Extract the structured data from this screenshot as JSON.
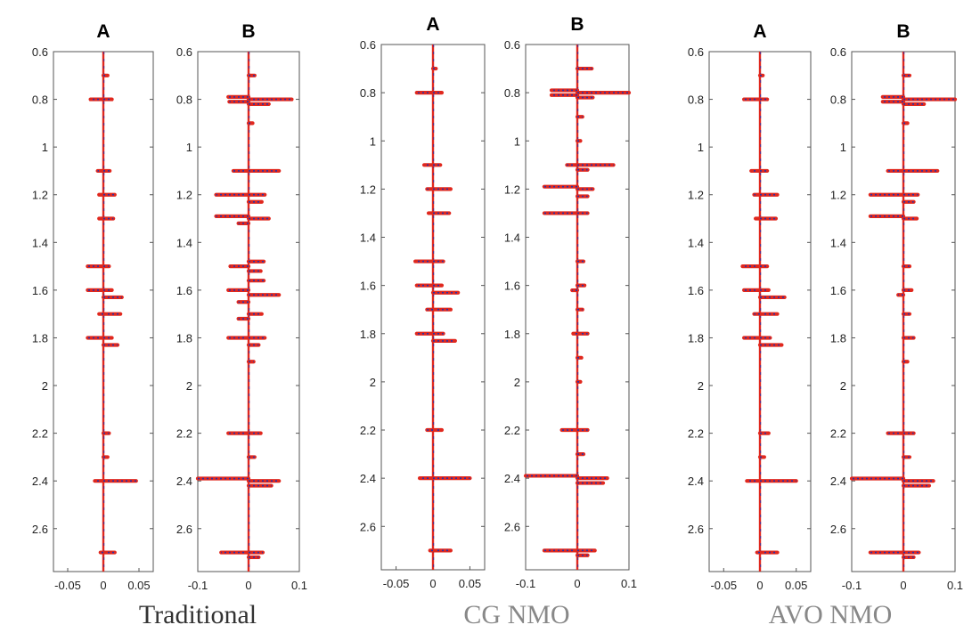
{
  "group_labels": [
    "Traditional",
    "CG NMO",
    "AVO NMO"
  ],
  "colors": {
    "trace_red": "#e0281e",
    "trace_blue": "#2a2fa8",
    "frame": "#555555"
  },
  "chart_data": [
    {
      "type": "line",
      "group": "Traditional",
      "title": "A",
      "xlim": [
        -0.07,
        0.07
      ],
      "xticks": [
        "-0.05",
        "0",
        "0.05"
      ],
      "ylim": [
        2.78,
        0.6
      ],
      "yticks": [
        "0.6",
        "0.8",
        "1",
        "1.2",
        "1.4",
        "1.6",
        "1.8",
        "2",
        "2.2",
        "2.4",
        "2.6"
      ],
      "spikes": [
        {
          "t": 0.7,
          "a": 0.006
        },
        {
          "t": 0.8,
          "a": -0.018
        },
        {
          "t": 0.8,
          "a": 0.012
        },
        {
          "t": 1.1,
          "a": -0.008
        },
        {
          "t": 1.1,
          "a": 0.009
        },
        {
          "t": 1.2,
          "a": -0.006
        },
        {
          "t": 1.2,
          "a": 0.016
        },
        {
          "t": 1.3,
          "a": -0.006
        },
        {
          "t": 1.3,
          "a": 0.014
        },
        {
          "t": 1.5,
          "a": -0.022
        },
        {
          "t": 1.5,
          "a": 0.008
        },
        {
          "t": 1.6,
          "a": -0.022
        },
        {
          "t": 1.6,
          "a": 0.012
        },
        {
          "t": 1.63,
          "a": 0.026
        },
        {
          "t": 1.7,
          "a": 0.024
        },
        {
          "t": 1.7,
          "a": -0.006
        },
        {
          "t": 1.8,
          "a": -0.022
        },
        {
          "t": 1.8,
          "a": 0.012
        },
        {
          "t": 1.83,
          "a": 0.02
        },
        {
          "t": 2.2,
          "a": 0.008
        },
        {
          "t": 2.3,
          "a": 0.006
        },
        {
          "t": 2.4,
          "a": -0.012
        },
        {
          "t": 2.4,
          "a": 0.046
        },
        {
          "t": 2.7,
          "a": 0.016
        },
        {
          "t": 2.7,
          "a": -0.004
        }
      ]
    },
    {
      "type": "line",
      "group": "Traditional",
      "title": "B",
      "xlim": [
        -0.1,
        0.1
      ],
      "xticks": [
        "-0.1",
        "0",
        "0.1"
      ],
      "ylim": [
        2.78,
        0.6
      ],
      "yticks": [
        "0.6",
        "0.8",
        "1",
        "1.2",
        "1.4",
        "1.6",
        "1.8",
        "2",
        "2.2",
        "2.4",
        "2.6"
      ],
      "spikes": [
        {
          "t": 0.7,
          "a": 0.012
        },
        {
          "t": 0.79,
          "a": -0.04
        },
        {
          "t": 0.8,
          "a": 0.085
        },
        {
          "t": 0.81,
          "a": -0.038
        },
        {
          "t": 0.82,
          "a": 0.04
        },
        {
          "t": 0.9,
          "a": 0.008
        },
        {
          "t": 1.1,
          "a": -0.03
        },
        {
          "t": 1.1,
          "a": 0.06
        },
        {
          "t": 1.2,
          "a": -0.064
        },
        {
          "t": 1.2,
          "a": 0.032
        },
        {
          "t": 1.23,
          "a": 0.026
        },
        {
          "t": 1.29,
          "a": -0.064
        },
        {
          "t": 1.3,
          "a": 0.04
        },
        {
          "t": 1.32,
          "a": -0.02
        },
        {
          "t": 1.48,
          "a": 0.03
        },
        {
          "t": 1.5,
          "a": -0.036
        },
        {
          "t": 1.52,
          "a": 0.024
        },
        {
          "t": 1.56,
          "a": 0.03
        },
        {
          "t": 1.6,
          "a": -0.04
        },
        {
          "t": 1.62,
          "a": 0.06
        },
        {
          "t": 1.65,
          "a": -0.02
        },
        {
          "t": 1.7,
          "a": 0.026
        },
        {
          "t": 1.72,
          "a": -0.02
        },
        {
          "t": 1.8,
          "a": -0.04
        },
        {
          "t": 1.8,
          "a": 0.032
        },
        {
          "t": 1.83,
          "a": 0.02
        },
        {
          "t": 1.9,
          "a": 0.01
        },
        {
          "t": 2.2,
          "a": -0.04
        },
        {
          "t": 2.2,
          "a": 0.024
        },
        {
          "t": 2.3,
          "a": 0.012
        },
        {
          "t": 2.39,
          "a": -0.1
        },
        {
          "t": 2.4,
          "a": 0.06
        },
        {
          "t": 2.42,
          "a": 0.045
        },
        {
          "t": 2.7,
          "a": -0.054
        },
        {
          "t": 2.7,
          "a": 0.028
        },
        {
          "t": 2.72,
          "a": 0.02
        }
      ]
    },
    {
      "type": "line",
      "group": "CG NMO",
      "title": "A",
      "xlim": [
        -0.07,
        0.07
      ],
      "xticks": [
        "-0.05",
        "0",
        "0.05"
      ],
      "ylim": [
        2.78,
        0.6
      ],
      "yticks": [
        "0.6",
        "0.8",
        "1",
        "1.2",
        "1.4",
        "1.6",
        "1.8",
        "2",
        "2.2",
        "2.4",
        "2.6"
      ],
      "spikes": [
        {
          "t": 0.7,
          "a": 0.004
        },
        {
          "t": 0.8,
          "a": -0.022
        },
        {
          "t": 0.8,
          "a": 0.012
        },
        {
          "t": 1.1,
          "a": -0.012
        },
        {
          "t": 1.1,
          "a": 0.01
        },
        {
          "t": 1.2,
          "a": -0.008
        },
        {
          "t": 1.2,
          "a": 0.024
        },
        {
          "t": 1.3,
          "a": -0.006
        },
        {
          "t": 1.3,
          "a": 0.022
        },
        {
          "t": 1.5,
          "a": -0.024
        },
        {
          "t": 1.5,
          "a": 0.014
        },
        {
          "t": 1.6,
          "a": -0.022
        },
        {
          "t": 1.6,
          "a": 0.012
        },
        {
          "t": 1.63,
          "a": 0.034
        },
        {
          "t": 1.7,
          "a": 0.024
        },
        {
          "t": 1.7,
          "a": -0.008
        },
        {
          "t": 1.8,
          "a": -0.022
        },
        {
          "t": 1.8,
          "a": 0.014
        },
        {
          "t": 1.83,
          "a": 0.03
        },
        {
          "t": 2.2,
          "a": 0.012
        },
        {
          "t": 2.2,
          "a": -0.008
        },
        {
          "t": 2.4,
          "a": -0.018
        },
        {
          "t": 2.4,
          "a": 0.05
        },
        {
          "t": 2.7,
          "a": 0.024
        },
        {
          "t": 2.7,
          "a": -0.004
        }
      ]
    },
    {
      "type": "line",
      "group": "CG NMO",
      "title": "B",
      "xlim": [
        -0.1,
        0.1
      ],
      "xticks": [
        "-0.1",
        "0",
        "0.1"
      ],
      "ylim": [
        2.78,
        0.6
      ],
      "yticks": [
        "0.6",
        "0.8",
        "1",
        "1.2",
        "1.4",
        "1.6",
        "1.8",
        "2",
        "2.2",
        "2.4",
        "2.6"
      ],
      "spikes": [
        {
          "t": 0.7,
          "a": 0.028
        },
        {
          "t": 0.79,
          "a": -0.05
        },
        {
          "t": 0.8,
          "a": 0.1
        },
        {
          "t": 0.81,
          "a": -0.05
        },
        {
          "t": 0.82,
          "a": 0.03
        },
        {
          "t": 0.9,
          "a": 0.01
        },
        {
          "t": 1.0,
          "a": 0.006
        },
        {
          "t": 1.1,
          "a": -0.02
        },
        {
          "t": 1.1,
          "a": 0.07
        },
        {
          "t": 1.12,
          "a": 0.02
        },
        {
          "t": 1.19,
          "a": -0.064
        },
        {
          "t": 1.2,
          "a": 0.03
        },
        {
          "t": 1.23,
          "a": 0.02
        },
        {
          "t": 1.3,
          "a": -0.064
        },
        {
          "t": 1.3,
          "a": 0.02
        },
        {
          "t": 1.5,
          "a": 0.012
        },
        {
          "t": 1.6,
          "a": 0.014
        },
        {
          "t": 1.62,
          "a": -0.01
        },
        {
          "t": 1.7,
          "a": 0.01
        },
        {
          "t": 1.8,
          "a": 0.02
        },
        {
          "t": 1.8,
          "a": -0.008
        },
        {
          "t": 1.9,
          "a": 0.008
        },
        {
          "t": 2.0,
          "a": 0.006
        },
        {
          "t": 2.2,
          "a": -0.03
        },
        {
          "t": 2.2,
          "a": 0.02
        },
        {
          "t": 2.3,
          "a": 0.012
        },
        {
          "t": 2.39,
          "a": -0.1
        },
        {
          "t": 2.4,
          "a": 0.058
        },
        {
          "t": 2.42,
          "a": 0.05
        },
        {
          "t": 2.7,
          "a": -0.064
        },
        {
          "t": 2.7,
          "a": 0.034
        },
        {
          "t": 2.72,
          "a": 0.02
        }
      ]
    },
    {
      "type": "line",
      "group": "AVO NMO",
      "title": "A",
      "xlim": [
        -0.07,
        0.07
      ],
      "xticks": [
        "-0.05",
        "0",
        "0.05"
      ],
      "ylim": [
        2.78,
        0.6
      ],
      "yticks": [
        "0.6",
        "0.8",
        "1",
        "1.2",
        "1.4",
        "1.6",
        "1.8",
        "2",
        "2.2",
        "2.4",
        "2.6"
      ],
      "spikes": [
        {
          "t": 0.7,
          "a": 0.004
        },
        {
          "t": 0.8,
          "a": -0.022
        },
        {
          "t": 0.8,
          "a": 0.01
        },
        {
          "t": 1.1,
          "a": -0.012
        },
        {
          "t": 1.1,
          "a": 0.01
        },
        {
          "t": 1.2,
          "a": -0.008
        },
        {
          "t": 1.2,
          "a": 0.024
        },
        {
          "t": 1.3,
          "a": -0.006
        },
        {
          "t": 1.3,
          "a": 0.022
        },
        {
          "t": 1.5,
          "a": -0.024
        },
        {
          "t": 1.5,
          "a": 0.01
        },
        {
          "t": 1.6,
          "a": -0.022
        },
        {
          "t": 1.6,
          "a": 0.012
        },
        {
          "t": 1.63,
          "a": 0.034
        },
        {
          "t": 1.7,
          "a": 0.024
        },
        {
          "t": 1.7,
          "a": -0.008
        },
        {
          "t": 1.8,
          "a": -0.022
        },
        {
          "t": 1.8,
          "a": 0.014
        },
        {
          "t": 1.83,
          "a": 0.03
        },
        {
          "t": 2.2,
          "a": 0.012
        },
        {
          "t": 2.3,
          "a": 0.006
        },
        {
          "t": 2.4,
          "a": -0.018
        },
        {
          "t": 2.4,
          "a": 0.05
        },
        {
          "t": 2.7,
          "a": 0.024
        },
        {
          "t": 2.7,
          "a": -0.004
        }
      ]
    },
    {
      "type": "line",
      "group": "AVO NMO",
      "title": "B",
      "xlim": [
        -0.1,
        0.1
      ],
      "xticks": [
        "-0.1",
        "0",
        "0.1"
      ],
      "ylim": [
        2.78,
        0.6
      ],
      "yticks": [
        "0.6",
        "0.8",
        "1",
        "1.2",
        "1.4",
        "1.6",
        "1.8",
        "2",
        "2.2",
        "2.4",
        "2.6"
      ],
      "spikes": [
        {
          "t": 0.7,
          "a": 0.012
        },
        {
          "t": 0.79,
          "a": -0.04
        },
        {
          "t": 0.8,
          "a": 0.1
        },
        {
          "t": 0.81,
          "a": -0.04
        },
        {
          "t": 0.82,
          "a": 0.04
        },
        {
          "t": 0.9,
          "a": 0.008
        },
        {
          "t": 1.1,
          "a": -0.03
        },
        {
          "t": 1.1,
          "a": 0.066
        },
        {
          "t": 1.2,
          "a": -0.064
        },
        {
          "t": 1.2,
          "a": 0.028
        },
        {
          "t": 1.23,
          "a": 0.02
        },
        {
          "t": 1.29,
          "a": -0.064
        },
        {
          "t": 1.3,
          "a": 0.026
        },
        {
          "t": 1.5,
          "a": 0.012
        },
        {
          "t": 1.6,
          "a": 0.016
        },
        {
          "t": 1.62,
          "a": -0.01
        },
        {
          "t": 1.7,
          "a": 0.012
        },
        {
          "t": 1.8,
          "a": 0.02
        },
        {
          "t": 1.9,
          "a": 0.008
        },
        {
          "t": 2.2,
          "a": -0.03
        },
        {
          "t": 2.2,
          "a": 0.02
        },
        {
          "t": 2.3,
          "a": 0.012
        },
        {
          "t": 2.39,
          "a": -0.1
        },
        {
          "t": 2.4,
          "a": 0.058
        },
        {
          "t": 2.42,
          "a": 0.05
        },
        {
          "t": 2.7,
          "a": -0.064
        },
        {
          "t": 2.7,
          "a": 0.03
        },
        {
          "t": 2.72,
          "a": 0.02
        }
      ]
    }
  ]
}
